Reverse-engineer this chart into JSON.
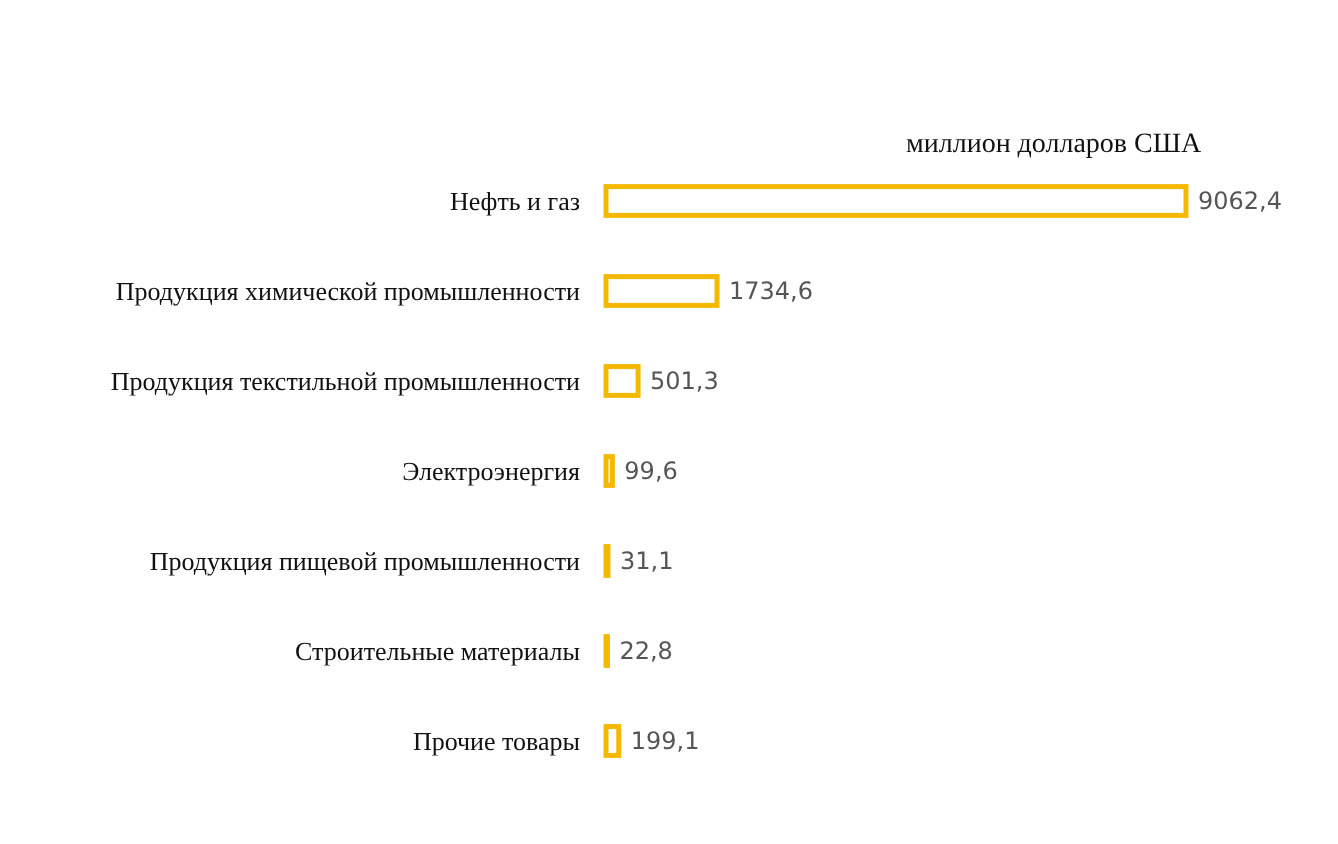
{
  "chart_data": {
    "type": "bar",
    "orientation": "horizontal",
    "title": "миллион долларов США",
    "categories": [
      "Нефть и газ",
      "Продукция химической промышленности",
      "Продукция текстильной промышленности",
      "Электроэнергия",
      "Продукция пищевой промышленности",
      "Строительные материалы",
      "Прочие товары"
    ],
    "values": [
      9062.4,
      1734.6,
      501.3,
      99.6,
      31.1,
      22.8,
      199.1
    ],
    "value_labels": [
      "9062,4",
      "1734,6",
      "501,3",
      "99,6",
      "31,1",
      "22,8",
      "199,1"
    ],
    "color": "#f5b800"
  }
}
